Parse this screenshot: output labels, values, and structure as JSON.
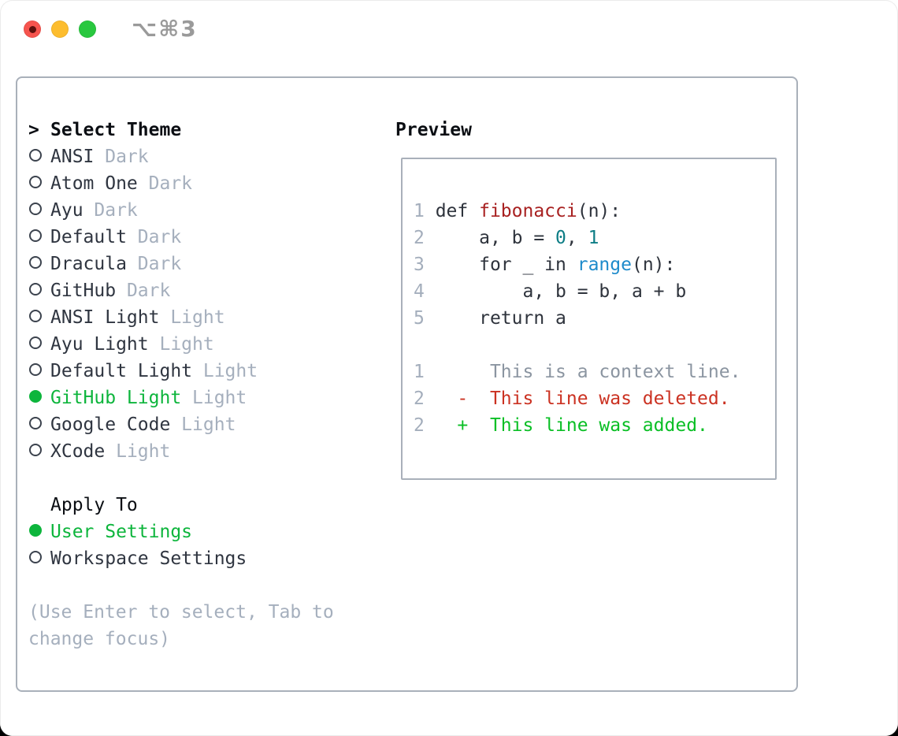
{
  "window": {
    "title": "⌥⌘3"
  },
  "theme_picker": {
    "prompt": ">",
    "header": "Select Theme",
    "items": [
      {
        "name": "ANSI",
        "variant": "Dark",
        "selected": false
      },
      {
        "name": "Atom One",
        "variant": "Dark",
        "selected": false
      },
      {
        "name": "Ayu",
        "variant": "Dark",
        "selected": false
      },
      {
        "name": "Default",
        "variant": "Dark",
        "selected": false
      },
      {
        "name": "Dracula",
        "variant": "Dark",
        "selected": false
      },
      {
        "name": "GitHub",
        "variant": "Dark",
        "selected": false
      },
      {
        "name": "ANSI Light",
        "variant": "Light",
        "selected": false
      },
      {
        "name": "Ayu Light",
        "variant": "Light",
        "selected": false
      },
      {
        "name": "Default Light",
        "variant": "Light",
        "selected": false
      },
      {
        "name": "GitHub Light",
        "variant": "Light",
        "selected": true
      },
      {
        "name": "Google Code",
        "variant": "Light",
        "selected": false
      },
      {
        "name": "XCode",
        "variant": "Light",
        "selected": false
      }
    ]
  },
  "apply_to": {
    "header": "Apply To",
    "options": [
      {
        "label": "User Settings",
        "selected": true
      },
      {
        "label": "Workspace Settings",
        "selected": false
      }
    ]
  },
  "hint": "(Use Enter to select, Tab to change focus)",
  "preview": {
    "header": "Preview",
    "lines": [
      [
        {
          "t": "1 ",
          "c": "num"
        },
        {
          "t": "def ",
          "c": "plain"
        },
        {
          "t": "fibonacci",
          "c": "func"
        },
        {
          "t": "(n):",
          "c": "plain"
        }
      ],
      [
        {
          "t": "2 ",
          "c": "num"
        },
        {
          "t": "    a, b = ",
          "c": "plain"
        },
        {
          "t": "0",
          "c": "numlit"
        },
        {
          "t": ", ",
          "c": "plain"
        },
        {
          "t": "1",
          "c": "numlit"
        }
      ],
      [
        {
          "t": "3 ",
          "c": "num"
        },
        {
          "t": "    for _ in ",
          "c": "plain"
        },
        {
          "t": "range",
          "c": "call"
        },
        {
          "t": "(n):",
          "c": "plain"
        }
      ],
      [
        {
          "t": "4 ",
          "c": "num"
        },
        {
          "t": "        a, b = b, a + b",
          "c": "plain"
        }
      ],
      [
        {
          "t": "5 ",
          "c": "num"
        },
        {
          "t": "    return a",
          "c": "plain"
        }
      ],
      [
        {
          "t": "",
          "c": "plain"
        }
      ],
      [
        {
          "t": "1 ",
          "c": "num"
        },
        {
          "t": "     This is a context line.",
          "c": "ctx"
        }
      ],
      [
        {
          "t": "2 ",
          "c": "num"
        },
        {
          "t": "  -  This line was deleted.",
          "c": "del"
        }
      ],
      [
        {
          "t": "2 ",
          "c": "num"
        },
        {
          "t": "  +  This line was added.",
          "c": "add"
        }
      ]
    ]
  },
  "colors": {
    "select_green": "#0db53c",
    "diff_green": "#0abf25",
    "diff_red": "#cb3222",
    "func_red": "#a82121",
    "numlit_teal": "#0d7d85",
    "call_blue": "#1e8bcb",
    "muted_gray": "#a5afbd",
    "linenum_gray": "#a4aebc",
    "context_gray": "#8b95a1",
    "border_gray": "#a9b0ba",
    "traffic_red": "#f6544e",
    "traffic_yellow": "#fdbd2e",
    "traffic_green": "#29c83f"
  }
}
